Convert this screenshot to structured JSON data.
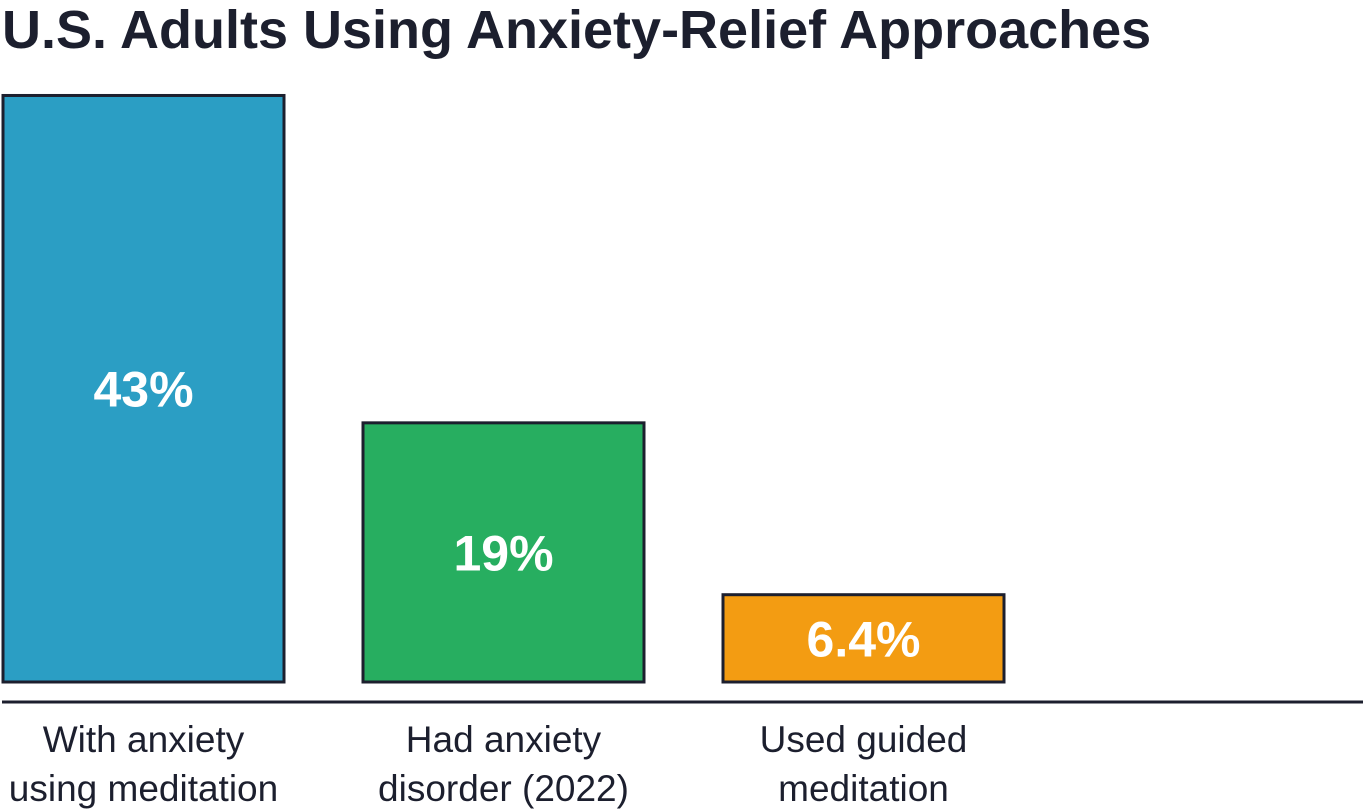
{
  "chart_data": {
    "type": "bar",
    "title": "U.S. Adults Using Anxiety-Relief Approaches",
    "xlabel": "",
    "ylabel": "",
    "grid": false,
    "ylim": [
      0,
      50
    ],
    "categories": [
      [
        "With anxiety",
        "using meditation"
      ],
      [
        "Had anxiety",
        "disorder (2022)"
      ],
      [
        "Used guided",
        "meditation"
      ]
    ],
    "values": [
      43,
      19,
      6.4
    ],
    "value_labels": [
      "43%",
      "19%",
      "6.4%"
    ],
    "colors": [
      "#2b9ec4",
      "#27ae60",
      "#f39c12"
    ]
  }
}
